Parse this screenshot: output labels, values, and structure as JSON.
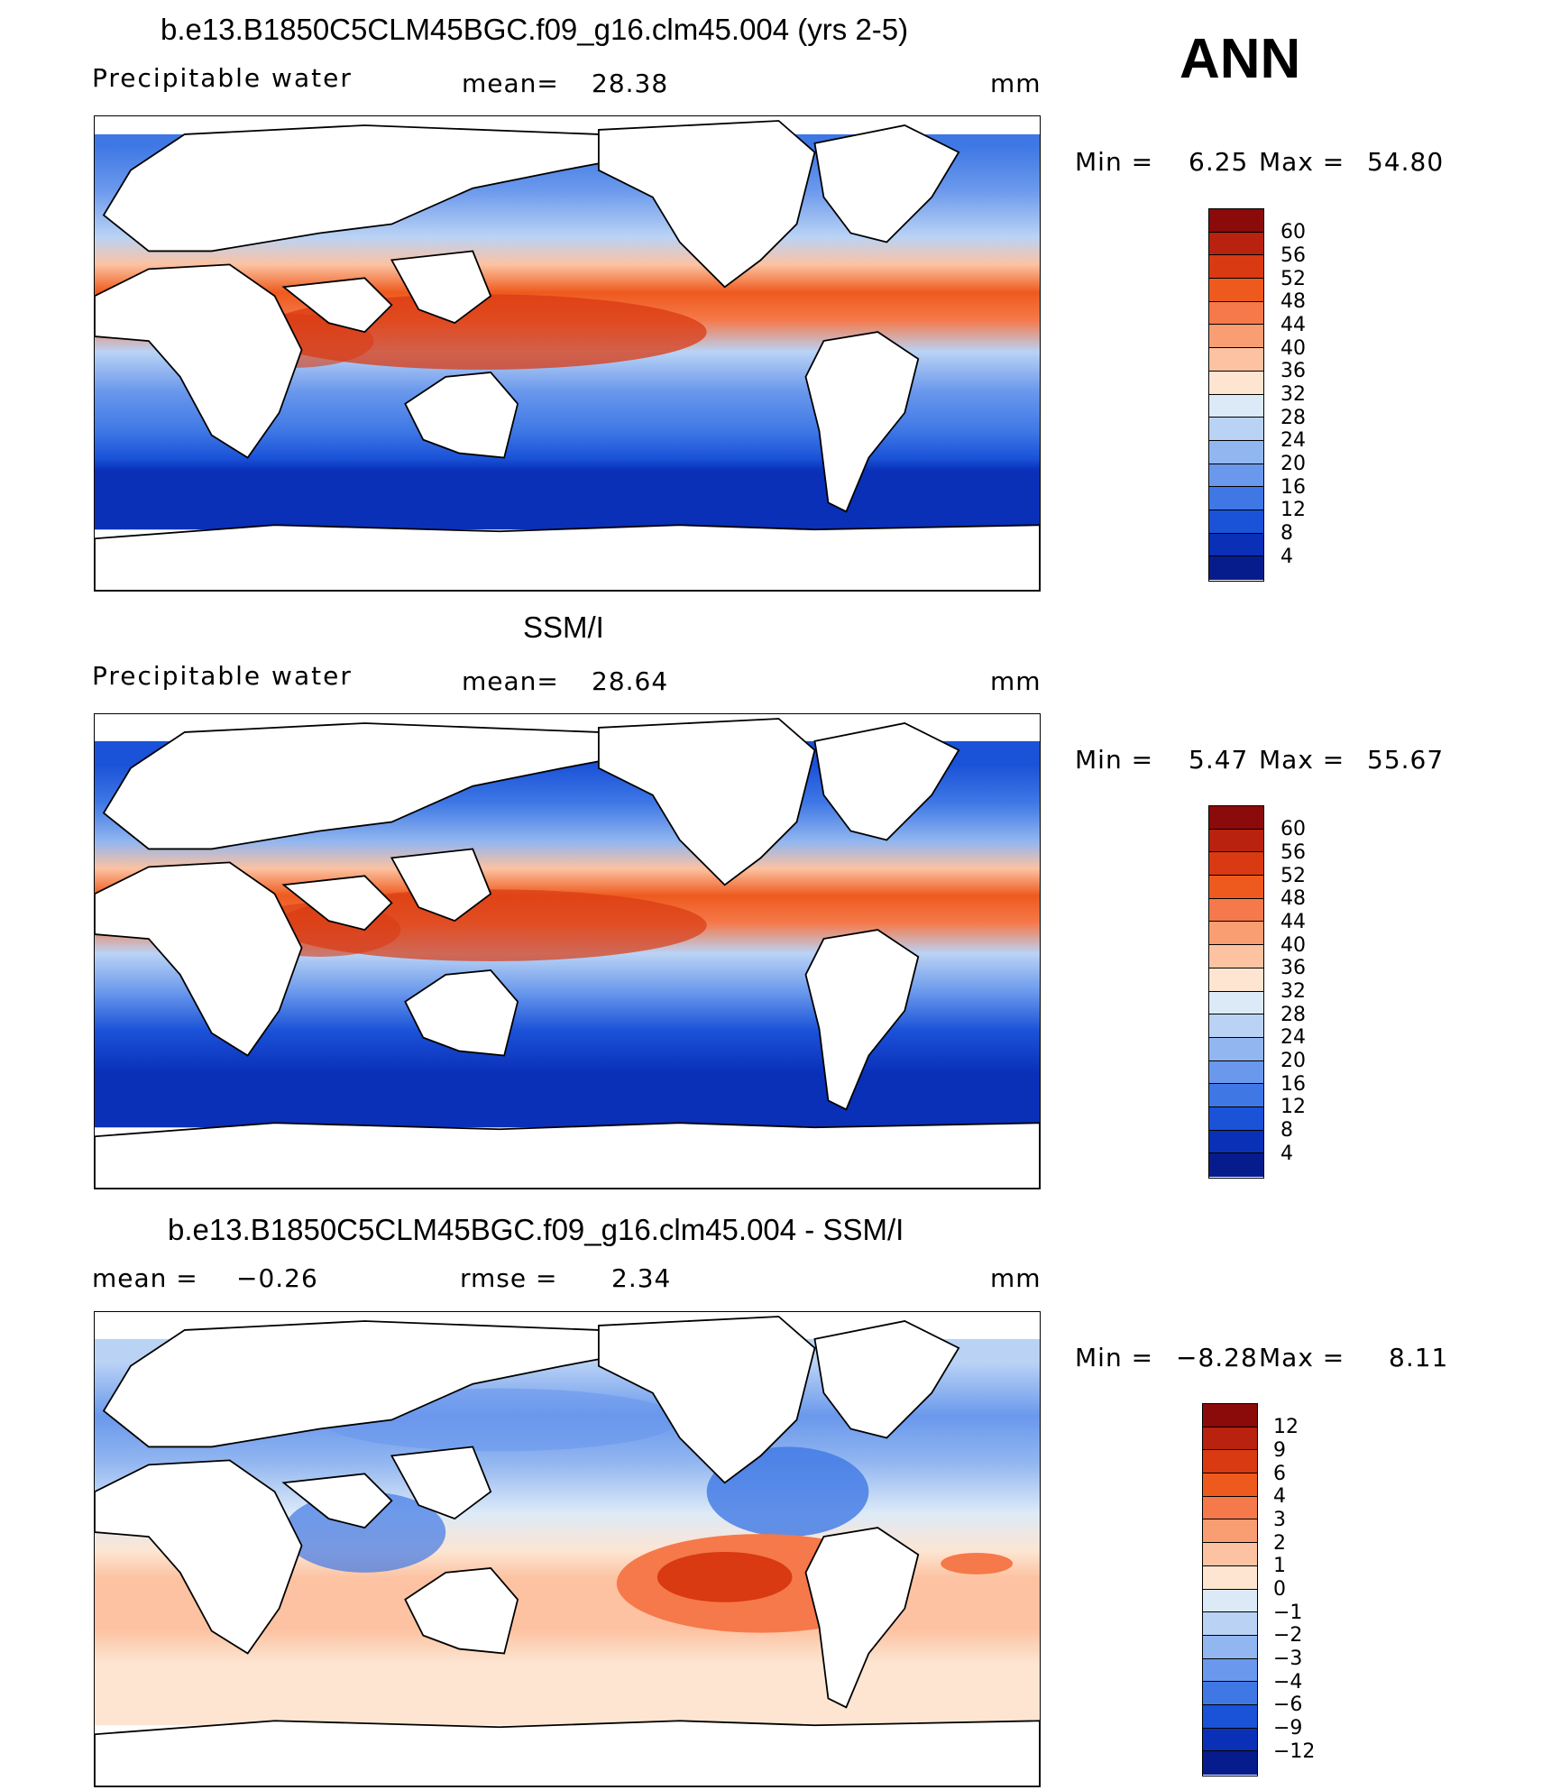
{
  "header": {
    "season": "ANN"
  },
  "panels": [
    {
      "title": "b.e13.B1850C5CLM45BGC.f09_g16.clm45.004 (yrs 2-5)",
      "variable": "Precipitable water",
      "stat_label": "mean=",
      "stat_value": "28.38",
      "stat2_label": "",
      "stat2_value": "",
      "units": "mm",
      "min_label": "Min =",
      "min_value": "6.25",
      "max_label": "Max =",
      "max_value": "54.80",
      "colorbar": {
        "levels": [
          "60",
          "56",
          "52",
          "48",
          "44",
          "40",
          "36",
          "32",
          "28",
          "24",
          "20",
          "16",
          "12",
          "8",
          "4"
        ],
        "colors": [
          "#8B0A0A",
          "#B8220E",
          "#D93A12",
          "#EE5A1E",
          "#F5794A",
          "#F99D72",
          "#FCC2A1",
          "#FDE5D2",
          "#DCEAF8",
          "#BAD3F5",
          "#92B6F0",
          "#6A98EC",
          "#3F78E5",
          "#1A52D8",
          "#0A30B8",
          "#071C8C"
        ]
      }
    },
    {
      "title": "SSM/I",
      "variable": "Precipitable water",
      "stat_label": "mean=",
      "stat_value": "28.64",
      "stat2_label": "",
      "stat2_value": "",
      "units": "mm",
      "min_label": "Min =",
      "min_value": "5.47",
      "max_label": "Max =",
      "max_value": "55.67",
      "colorbar": {
        "levels": [
          "60",
          "56",
          "52",
          "48",
          "44",
          "40",
          "36",
          "32",
          "28",
          "24",
          "20",
          "16",
          "12",
          "8",
          "4"
        ],
        "colors": [
          "#8B0A0A",
          "#B8220E",
          "#D93A12",
          "#EE5A1E",
          "#F5794A",
          "#F99D72",
          "#FCC2A1",
          "#FDE5D2",
          "#DCEAF8",
          "#BAD3F5",
          "#92B6F0",
          "#6A98EC",
          "#3F78E5",
          "#1A52D8",
          "#0A30B8",
          "#071C8C"
        ]
      }
    },
    {
      "title": "b.e13.B1850C5CLM45BGC.f09_g16.clm45.004 - SSM/I",
      "variable": "",
      "stat_label": "mean =",
      "stat_value": "−0.26",
      "stat2_label": "rmse =",
      "stat2_value": "2.34",
      "units": "mm",
      "min_label": "Min =",
      "min_value": "−8.28",
      "max_label": "Max =",
      "max_value": "8.11",
      "colorbar": {
        "levels": [
          "12",
          "9",
          "6",
          "4",
          "3",
          "2",
          "1",
          "0",
          "−1",
          "−2",
          "−3",
          "−4",
          "−6",
          "−9",
          "−12"
        ],
        "colors": [
          "#8B0A0A",
          "#B8220E",
          "#D93A12",
          "#EE5A1E",
          "#F5794A",
          "#F99D72",
          "#FCC2A1",
          "#FDE5D2",
          "#DCEAF8",
          "#BAD3F5",
          "#92B6F0",
          "#6A98EC",
          "#3F78E5",
          "#1A52D8",
          "#0A30B8",
          "#071C8C"
        ]
      }
    }
  ]
}
